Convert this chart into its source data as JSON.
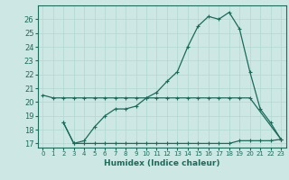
{
  "title": "",
  "xlabel": "Humidex (Indice chaleur)",
  "bg_color": "#cde8e4",
  "grid_color": "#b0d8d0",
  "line_color": "#1a6b5a",
  "xlim": [
    -0.5,
    23.5
  ],
  "ylim": [
    16.7,
    27.0
  ],
  "xticks": [
    0,
    1,
    2,
    3,
    4,
    5,
    6,
    7,
    8,
    9,
    10,
    11,
    12,
    13,
    14,
    15,
    16,
    17,
    18,
    19,
    20,
    21,
    22,
    23
  ],
  "yticks": [
    17,
    18,
    19,
    20,
    21,
    22,
    23,
    24,
    25,
    26
  ],
  "line1_x": [
    0,
    1,
    2,
    3,
    4,
    5,
    6,
    7,
    8,
    9,
    10,
    11,
    12,
    13,
    14,
    15,
    16,
    17,
    18,
    19,
    20,
    23
  ],
  "line1_y": [
    20.5,
    20.3,
    20.3,
    20.3,
    20.3,
    20.3,
    20.3,
    20.3,
    20.3,
    20.3,
    20.3,
    20.3,
    20.3,
    20.3,
    20.3,
    20.3,
    20.3,
    20.3,
    20.3,
    20.3,
    20.3,
    17.3
  ],
  "line2_x": [
    2,
    3,
    4,
    5,
    6,
    7,
    8,
    9,
    10,
    11,
    12,
    13,
    14,
    15,
    16,
    17,
    18,
    19,
    20,
    21,
    22,
    23
  ],
  "line2_y": [
    18.5,
    17.0,
    17.2,
    18.2,
    19.0,
    19.5,
    19.5,
    19.7,
    20.3,
    20.7,
    21.5,
    22.2,
    24.0,
    25.5,
    26.2,
    26.0,
    26.5,
    25.3,
    22.2,
    19.5,
    18.5,
    17.3
  ],
  "line3_x": [
    2,
    3,
    4,
    5,
    6,
    7,
    8,
    9,
    10,
    11,
    12,
    13,
    14,
    15,
    16,
    17,
    18,
    19,
    20,
    21,
    22,
    23
  ],
  "line3_y": [
    18.5,
    17.0,
    17.0,
    17.0,
    17.0,
    17.0,
    17.0,
    17.0,
    17.0,
    17.0,
    17.0,
    17.0,
    17.0,
    17.0,
    17.0,
    17.0,
    17.0,
    17.2,
    17.2,
    17.2,
    17.2,
    17.3
  ]
}
